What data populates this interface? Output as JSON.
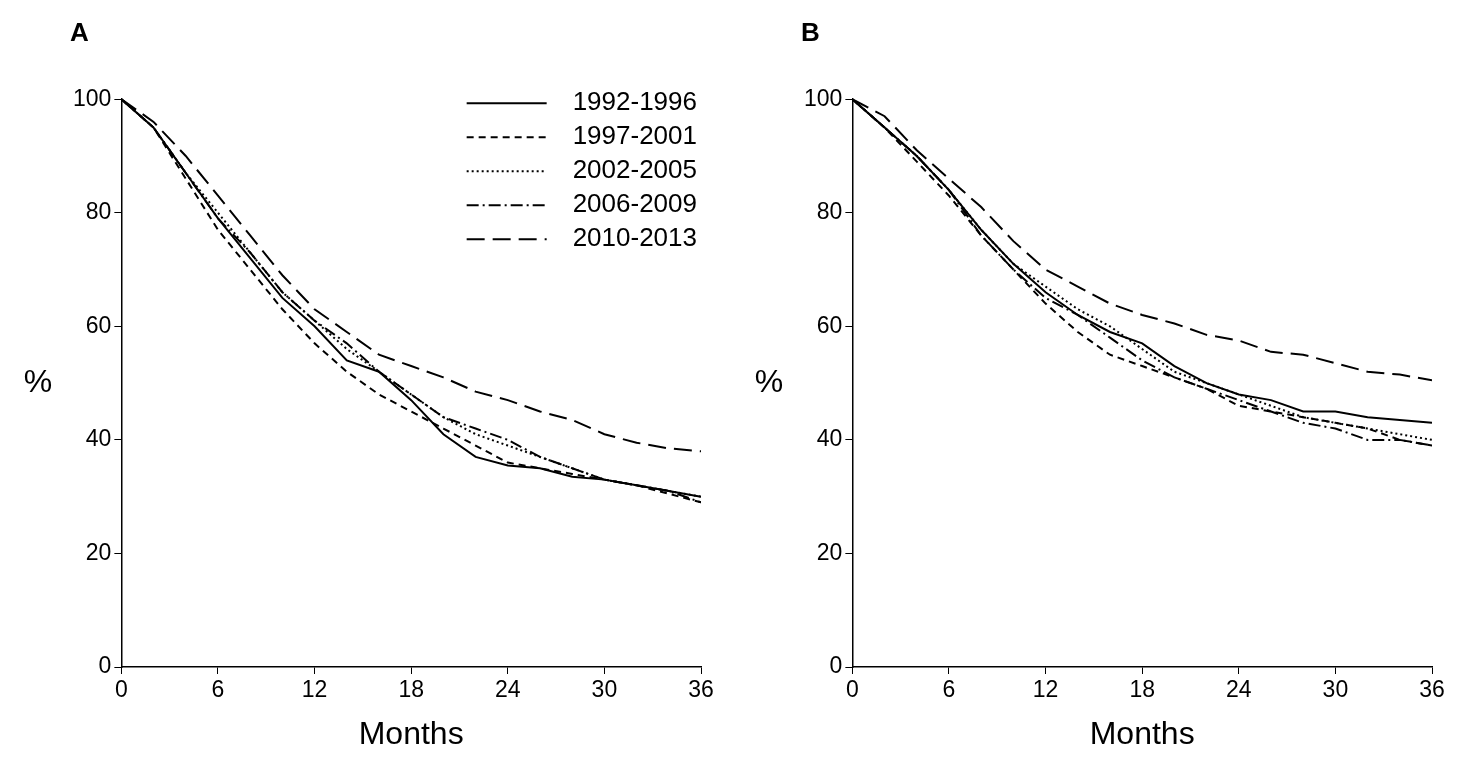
{
  "chart_data": [
    {
      "type": "line",
      "title": "A",
      "xlabel": "Months",
      "ylabel": "%",
      "x": [
        0,
        2,
        4,
        6,
        8,
        10,
        12,
        14,
        16,
        18,
        20,
        22,
        24,
        26,
        28,
        30,
        32,
        34,
        36
      ],
      "xlim": [
        0,
        36
      ],
      "xticks": [
        0,
        6,
        12,
        18,
        24,
        30,
        36
      ],
      "ylim": [
        0,
        100
      ],
      "yticks": [
        0,
        20,
        40,
        60,
        80,
        100
      ],
      "grid": false,
      "legend": "upper right",
      "series": [
        {
          "name": "1992-1996",
          "color": "#000000",
          "line_style": "solid",
          "values": [
            100,
            95,
            87,
            79,
            72,
            65,
            60,
            54,
            52,
            47,
            41,
            37,
            35.5,
            35,
            33.5,
            33,
            32,
            31,
            30
          ]
        },
        {
          "name": "1997-2001",
          "color": "#000000",
          "line_style": "dashed",
          "values": [
            100,
            95,
            86,
            77,
            70,
            63,
            57,
            52,
            48,
            45,
            42,
            39,
            36,
            35,
            34,
            33,
            32,
            30.5,
            29
          ]
        },
        {
          "name": "2002-2005",
          "color": "#000000",
          "line_style": "dotted",
          "values": [
            100,
            95,
            87,
            80,
            73,
            66,
            61,
            56,
            52,
            48,
            44,
            41,
            39,
            37,
            35,
            33,
            32,
            31,
            30
          ]
        },
        {
          "name": "2006-2009",
          "color": "#000000",
          "line_style": "dashdot",
          "values": [
            100,
            95,
            87,
            79,
            73,
            66,
            61,
            57,
            52,
            48,
            44,
            42,
            40,
            37,
            35,
            33,
            32,
            31,
            29
          ]
        },
        {
          "name": "2010-2013",
          "color": "#000000",
          "line_style": "longdash",
          "values": [
            100,
            96,
            90,
            83,
            76,
            69,
            63,
            59,
            55,
            53,
            51,
            48.5,
            47,
            45,
            43.5,
            41,
            39.5,
            38.5,
            38
          ]
        }
      ]
    },
    {
      "type": "line",
      "title": "B",
      "xlabel": "Months",
      "ylabel": "%",
      "x": [
        0,
        2,
        4,
        6,
        8,
        10,
        12,
        14,
        16,
        18,
        20,
        22,
        24,
        26,
        28,
        30,
        32,
        34,
        36
      ],
      "xlim": [
        0,
        36
      ],
      "xticks": [
        0,
        6,
        12,
        18,
        24,
        30,
        36
      ],
      "ylim": [
        0,
        100
      ],
      "yticks": [
        0,
        20,
        40,
        60,
        80,
        100
      ],
      "grid": false,
      "series": [
        {
          "color": "#000000",
          "line_style": "solid",
          "values": [
            100,
            95,
            90,
            84,
            77,
            71,
            66,
            62,
            59,
            57,
            53,
            50,
            48,
            47,
            45,
            45,
            44,
            43.5,
            43
          ]
        },
        {
          "color": "#000000",
          "line_style": "dashed",
          "values": [
            100,
            95,
            89,
            83,
            76,
            70,
            64,
            59,
            55,
            53,
            51,
            49,
            46,
            45,
            44,
            43,
            42,
            40,
            39
          ]
        },
        {
          "color": "#000000",
          "line_style": "dotted",
          "values": [
            100,
            95,
            90,
            84,
            77,
            71,
            67,
            63,
            60,
            56,
            52,
            50,
            48,
            46,
            44,
            43,
            42,
            41,
            40
          ]
        },
        {
          "color": "#000000",
          "line_style": "dashdot",
          "values": [
            100,
            95,
            90,
            84,
            76,
            70,
            65,
            62,
            58,
            54,
            51,
            49,
            47,
            45,
            43,
            42,
            40,
            40,
            39
          ]
        },
        {
          "color": "#000000",
          "line_style": "longdash",
          "values": [
            100,
            97,
            91,
            86,
            81,
            75,
            70,
            67,
            64,
            62,
            60.5,
            58.5,
            57.5,
            55.5,
            55,
            53.5,
            52,
            51.5,
            50.5
          ]
        }
      ]
    }
  ]
}
